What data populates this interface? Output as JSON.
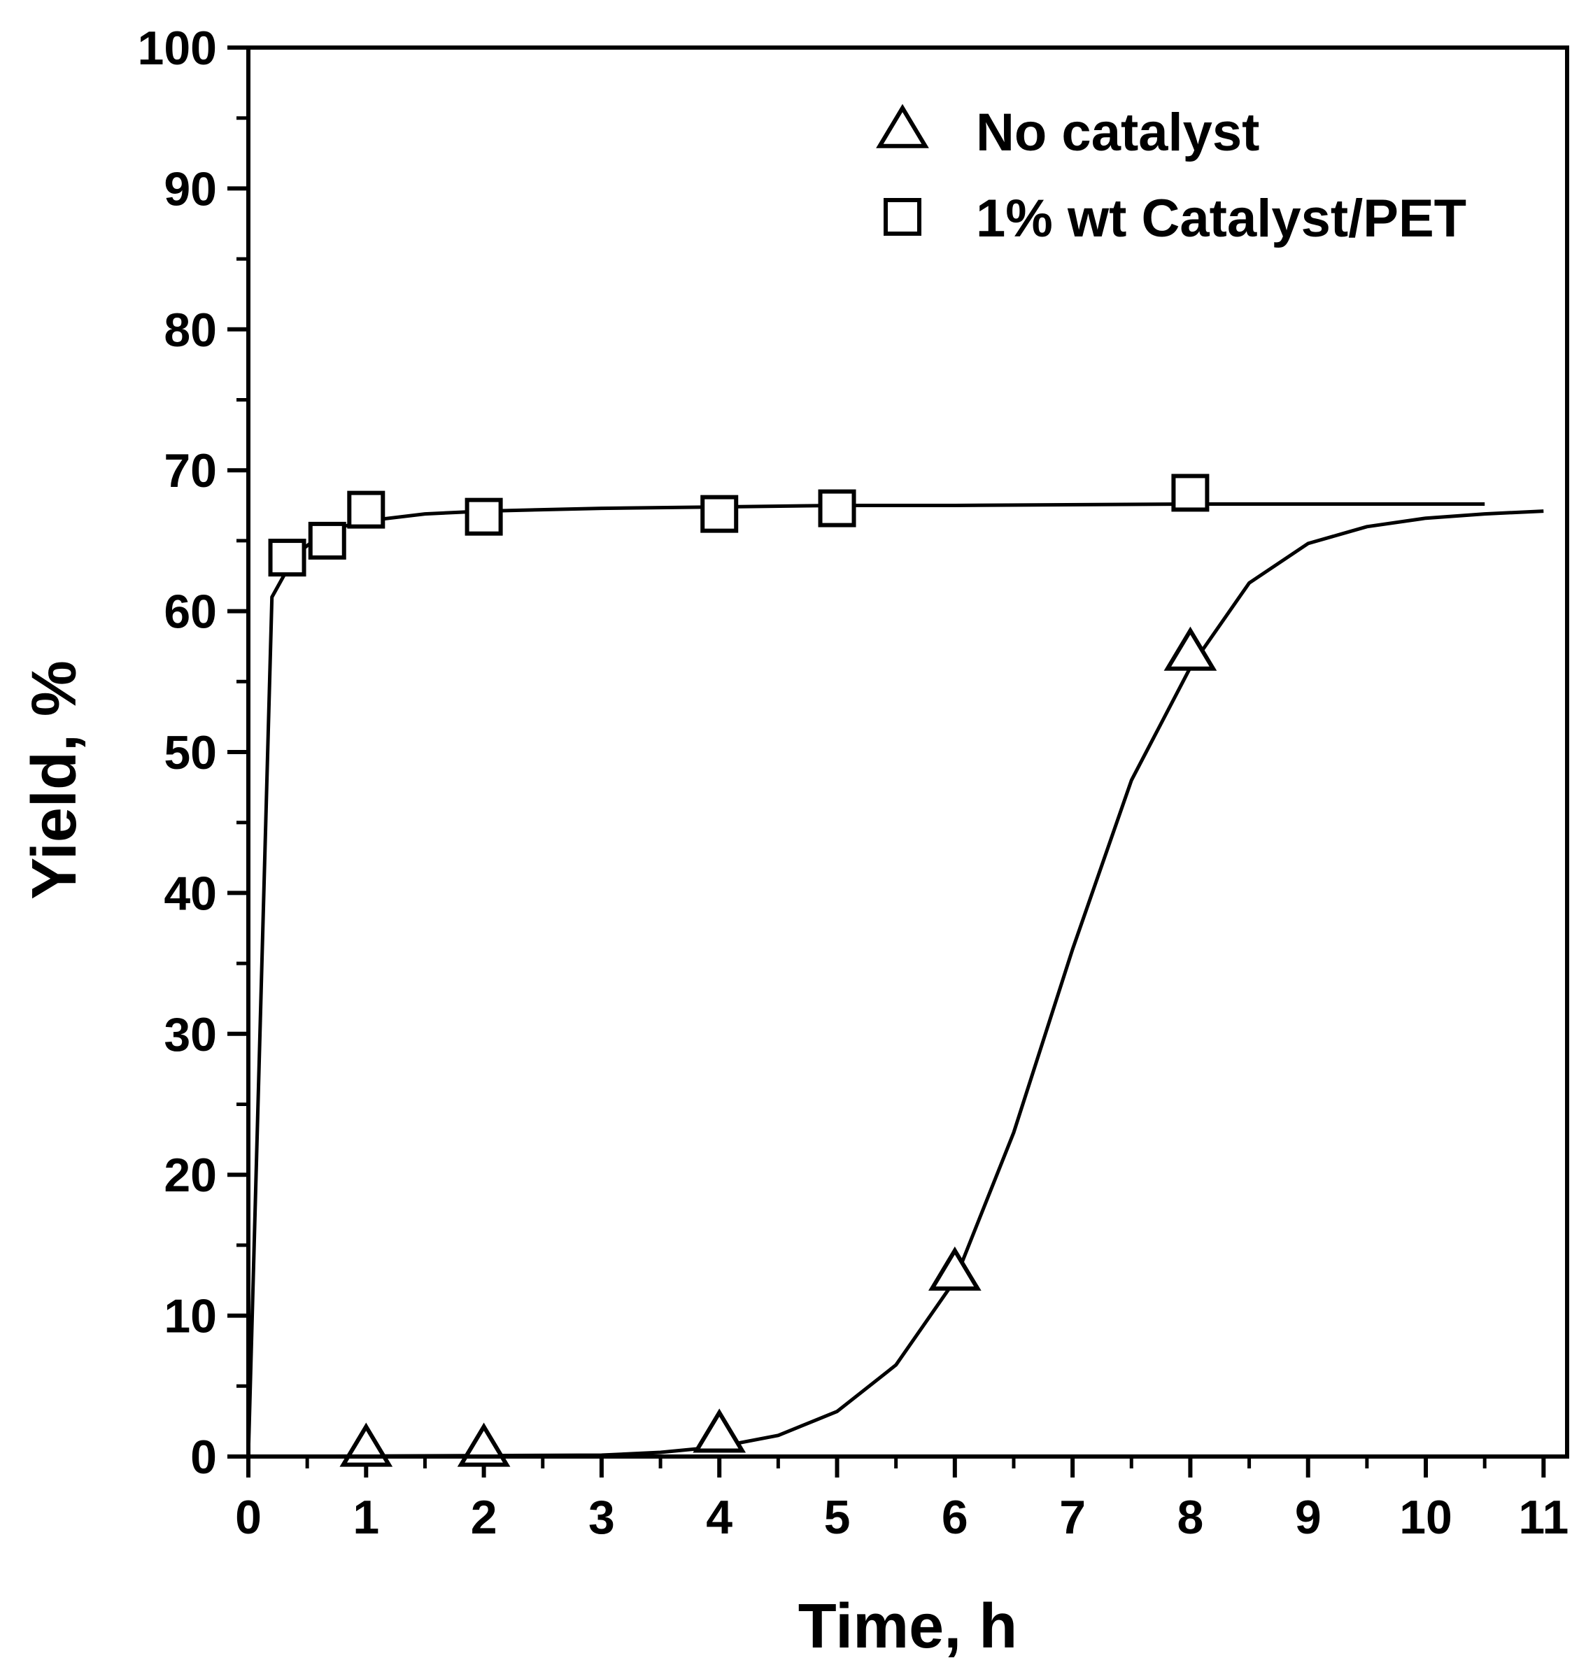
{
  "chart_data": {
    "type": "scatter",
    "xlabel": "Time, h",
    "ylabel": "Yield, %",
    "xlim": [
      0,
      11.2
    ],
    "ylim": [
      0,
      100
    ],
    "x_ticks": [
      0,
      1,
      2,
      3,
      4,
      5,
      6,
      7,
      8,
      9,
      10,
      11
    ],
    "y_ticks": [
      0,
      10,
      20,
      30,
      40,
      50,
      60,
      70,
      80,
      90,
      100
    ],
    "grid": false,
    "legend_position": "top-right",
    "series": [
      {
        "name": "No catalyst",
        "marker": "triangle",
        "points": [
          {
            "x": 1,
            "y": 0.5
          },
          {
            "x": 2,
            "y": 0.5
          },
          {
            "x": 4,
            "y": 1.5
          },
          {
            "x": 6,
            "y": 13
          },
          {
            "x": 8,
            "y": 57
          }
        ],
        "fit_curve": [
          {
            "x": 0,
            "y": 0
          },
          {
            "x": 3,
            "y": 0.1
          },
          {
            "x": 3.5,
            "y": 0.3
          },
          {
            "x": 4,
            "y": 0.7
          },
          {
            "x": 4.5,
            "y": 1.5
          },
          {
            "x": 5,
            "y": 3.2
          },
          {
            "x": 5.5,
            "y": 6.5
          },
          {
            "x": 6,
            "y": 12.5
          },
          {
            "x": 6.5,
            "y": 23
          },
          {
            "x": 7,
            "y": 36
          },
          {
            "x": 7.5,
            "y": 48
          },
          {
            "x": 8,
            "y": 56
          },
          {
            "x": 8.5,
            "y": 62
          },
          {
            "x": 9,
            "y": 64.8
          },
          {
            "x": 9.5,
            "y": 66
          },
          {
            "x": 10,
            "y": 66.6
          },
          {
            "x": 10.5,
            "y": 66.9
          },
          {
            "x": 11,
            "y": 67.1
          }
        ]
      },
      {
        "name": "1% wt Catalyst/PET",
        "marker": "square",
        "points": [
          {
            "x": 0.33,
            "y": 63.8
          },
          {
            "x": 0.67,
            "y": 65
          },
          {
            "x": 1,
            "y": 67.2
          },
          {
            "x": 2,
            "y": 66.7
          },
          {
            "x": 4,
            "y": 66.9
          },
          {
            "x": 5,
            "y": 67.3
          },
          {
            "x": 8,
            "y": 68.4
          }
        ],
        "fit_curve": [
          {
            "x": 0,
            "y": 0
          },
          {
            "x": 0.2,
            "y": 61
          },
          {
            "x": 0.4,
            "y": 64
          },
          {
            "x": 0.6,
            "y": 65.3
          },
          {
            "x": 0.8,
            "y": 66
          },
          {
            "x": 1,
            "y": 66.4
          },
          {
            "x": 1.5,
            "y": 66.9
          },
          {
            "x": 2,
            "y": 67.1
          },
          {
            "x": 3,
            "y": 67.3
          },
          {
            "x": 4,
            "y": 67.4
          },
          {
            "x": 5,
            "y": 67.5
          },
          {
            "x": 6,
            "y": 67.5
          },
          {
            "x": 8,
            "y": 67.6
          },
          {
            "x": 10.5,
            "y": 67.6
          }
        ]
      }
    ],
    "colors": {
      "line": "#000000",
      "background": "#ffffff"
    }
  }
}
